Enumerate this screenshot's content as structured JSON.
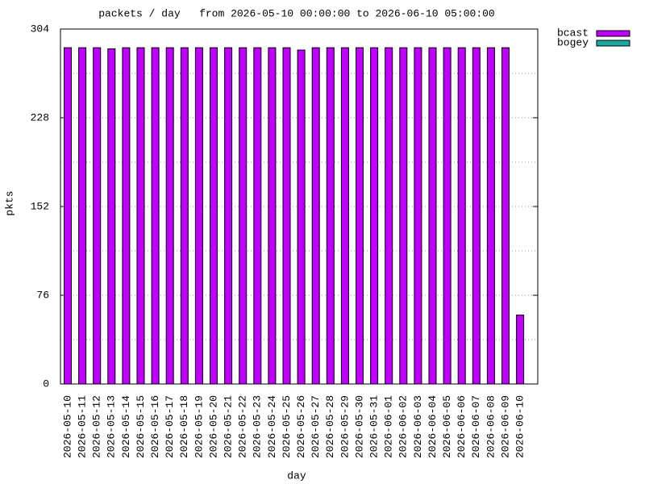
{
  "chart_data": {
    "type": "bar",
    "title": "packets / day   from 2026-05-10 00:00:00 to 2026-06-10 05:00:00",
    "x_label": "day",
    "y_label": "pkts",
    "categories": [
      "2026-05-10",
      "2026-05-11",
      "2026-05-12",
      "2026-05-13",
      "2026-05-14",
      "2026-05-15",
      "2026-05-16",
      "2026-05-17",
      "2026-05-18",
      "2026-05-19",
      "2026-05-20",
      "2026-05-21",
      "2026-05-22",
      "2026-05-23",
      "2026-05-24",
      "2026-05-25",
      "2026-05-26",
      "2026-05-27",
      "2026-05-28",
      "2026-05-29",
      "2026-05-30",
      "2026-05-31",
      "2026-06-01",
      "2026-06-02",
      "2026-06-03",
      "2026-06-04",
      "2026-06-05",
      "2026-06-06",
      "2026-06-07",
      "2026-06-08",
      "2026-06-09",
      "2026-06-10"
    ],
    "series": [
      {
        "name": "bcast",
        "color": "#bf00ff",
        "values": [
          288,
          288,
          288,
          287,
          288,
          288,
          288,
          288,
          288,
          288,
          288,
          288,
          288,
          288,
          288,
          288,
          286,
          288,
          288,
          288,
          288,
          288,
          288,
          288,
          288,
          288,
          288,
          288,
          288,
          288,
          288,
          59
        ]
      },
      {
        "name": "bogey",
        "color": "#1fa6a0",
        "values": [
          null,
          null,
          null,
          null,
          null,
          null,
          null,
          null,
          null,
          null,
          null,
          null,
          null,
          null,
          null,
          null,
          null,
          null,
          null,
          null,
          null,
          null,
          null,
          null,
          null,
          null,
          null,
          null,
          null,
          null,
          null,
          null
        ]
      }
    ],
    "ylim": [
      0,
      304
    ],
    "yticks": [
      0,
      76,
      152,
      228,
      304
    ],
    "yminorticks": [
      38,
      114,
      190,
      266
    ],
    "grid": true,
    "legend": "top-right"
  }
}
